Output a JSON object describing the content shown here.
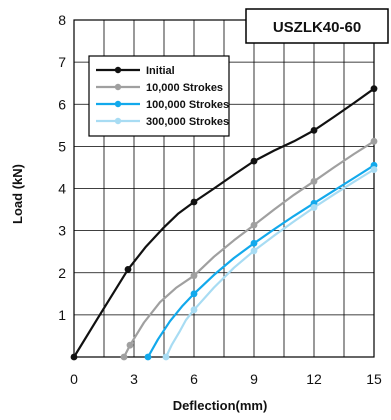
{
  "chart_data": {
    "type": "line",
    "title": "",
    "badge": "USZLK40-60",
    "xlabel": "Deflection(mm)",
    "ylabel": "Load (kN)",
    "xlim": [
      0,
      15
    ],
    "ylim": [
      0,
      8
    ],
    "xticks": [
      "0",
      "3",
      "6",
      "9",
      "12",
      "15"
    ],
    "yticks": [
      "1",
      "2",
      "3",
      "4",
      "5",
      "6",
      "7",
      "8"
    ],
    "grid": true,
    "legend_position": "top-left",
    "series": [
      {
        "name": "Initial",
        "color": "#111111",
        "points": [
          [
            0,
            0
          ],
          [
            2.7,
            2.08
          ],
          [
            6,
            3.68
          ],
          [
            9,
            4.65
          ],
          [
            12,
            5.38
          ],
          [
            15,
            6.37
          ]
        ],
        "smooth": [
          [
            0,
            0
          ],
          [
            1.2,
            0.93
          ],
          [
            2.7,
            2.08
          ],
          [
            3.6,
            2.62
          ],
          [
            4.5,
            3.08
          ],
          [
            5.2,
            3.4
          ],
          [
            6,
            3.68
          ],
          [
            7,
            4.0
          ],
          [
            8,
            4.33
          ],
          [
            9,
            4.65
          ],
          [
            10,
            4.9
          ],
          [
            11,
            5.12
          ],
          [
            12,
            5.38
          ],
          [
            13,
            5.7
          ],
          [
            14,
            6.03
          ],
          [
            15,
            6.37
          ]
        ]
      },
      {
        "name": "10,000 Strokes",
        "color": "#a0a0a0",
        "points": [
          [
            2.5,
            0
          ],
          [
            2.8,
            0.28
          ],
          [
            6,
            1.93
          ],
          [
            9,
            3.13
          ],
          [
            12,
            4.17
          ],
          [
            15,
            5.12
          ]
        ],
        "smooth": [
          [
            2.5,
            0
          ],
          [
            2.8,
            0.28
          ],
          [
            3.5,
            0.82
          ],
          [
            4.3,
            1.3
          ],
          [
            5.1,
            1.64
          ],
          [
            6,
            1.93
          ],
          [
            7,
            2.38
          ],
          [
            8,
            2.77
          ],
          [
            9,
            3.13
          ],
          [
            10,
            3.5
          ],
          [
            11,
            3.85
          ],
          [
            12,
            4.17
          ],
          [
            13,
            4.5
          ],
          [
            14,
            4.82
          ],
          [
            15,
            5.12
          ]
        ]
      },
      {
        "name": "100,000 Strokes",
        "color": "#12a9ec",
        "points": [
          [
            3.7,
            0
          ],
          [
            6,
            1.5
          ],
          [
            9,
            2.7
          ],
          [
            12,
            3.65
          ],
          [
            15,
            4.55
          ]
        ],
        "smooth": [
          [
            3.7,
            0
          ],
          [
            4.2,
            0.42
          ],
          [
            4.8,
            0.85
          ],
          [
            5.4,
            1.2
          ],
          [
            6,
            1.5
          ],
          [
            7,
            1.95
          ],
          [
            8,
            2.35
          ],
          [
            9,
            2.7
          ],
          [
            10,
            3.03
          ],
          [
            11,
            3.35
          ],
          [
            12,
            3.65
          ],
          [
            13,
            3.95
          ],
          [
            14,
            4.25
          ],
          [
            15,
            4.55
          ]
        ]
      },
      {
        "name": "300,000 Strokes",
        "color": "#a8dcf3",
        "points": [
          [
            4.6,
            0
          ],
          [
            6,
            1.12
          ],
          [
            9,
            2.52
          ],
          [
            12,
            3.55
          ],
          [
            15,
            4.45
          ]
        ],
        "smooth": [
          [
            4.6,
            0
          ],
          [
            4.9,
            0.3
          ],
          [
            5.3,
            0.62
          ],
          [
            5.6,
            0.88
          ],
          [
            6,
            1.12
          ],
          [
            7,
            1.65
          ],
          [
            8,
            2.12
          ],
          [
            9,
            2.52
          ],
          [
            10,
            2.88
          ],
          [
            11,
            3.22
          ],
          [
            12,
            3.55
          ],
          [
            13,
            3.86
          ],
          [
            14,
            4.16
          ],
          [
            15,
            4.45
          ]
        ]
      }
    ]
  }
}
